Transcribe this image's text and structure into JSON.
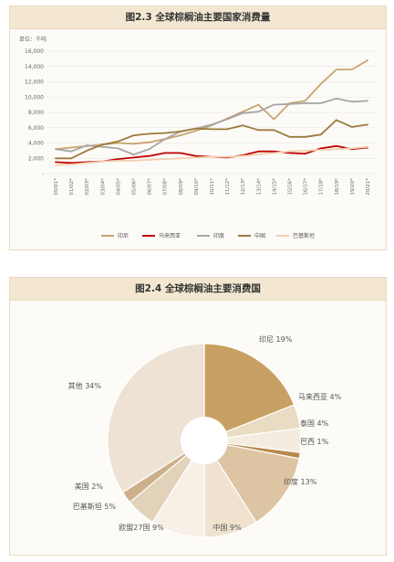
{
  "chart_data": [
    {
      "type": "line",
      "title": "图2.3 全球棕榈油主要国家消费量",
      "unit_label": "单位：千吨",
      "ylim": [
        0,
        16000
      ],
      "y_ticks": [
        "-",
        "2,000",
        "4,000",
        "6,000",
        "8,000",
        "10,000",
        "12,000",
        "14,000",
        "16,000"
      ],
      "categories": [
        "00/01*",
        "01/02*",
        "02/03*",
        "03/04*",
        "04/05*",
        "05/06*",
        "06/07*",
        "07/08*",
        "08/09*",
        "09/10*",
        "10/11*",
        "11/12*",
        "12/13*",
        "13/14*",
        "14/15*",
        "15/16*",
        "16/17*",
        "17/18*",
        "18/19*",
        "19/20*",
        "20/21*"
      ],
      "grid": true,
      "legend_position": "bottom",
      "series": [
        {
          "name": "印尼",
          "color": "#c8a46e",
          "values": [
            3200,
            3400,
            3600,
            3800,
            4000,
            3900,
            4100,
            4500,
            5000,
            5600,
            6300,
            7200,
            8100,
            9000,
            7100,
            9200,
            9500,
            11700,
            13600,
            13600,
            14800
          ]
        },
        {
          "name": "马来西亚",
          "color": "#c00000",
          "values": [
            1500,
            1400,
            1500,
            1600,
            1900,
            2100,
            2300,
            2700,
            2700,
            2300,
            2200,
            2100,
            2400,
            2900,
            2900,
            2700,
            2600,
            3300,
            3600,
            3200,
            3400
          ]
        },
        {
          "name": "印度",
          "color": "#a6a6a6",
          "values": [
            3200,
            2900,
            3700,
            3500,
            3300,
            2500,
            3200,
            4500,
            5500,
            5900,
            6400,
            7100,
            7900,
            8100,
            9000,
            9100,
            9200,
            9200,
            9800,
            9400,
            9500
          ]
        },
        {
          "name": "中国",
          "color": "#9c7a3c",
          "values": [
            2000,
            2000,
            3000,
            3800,
            4200,
            5000,
            5200,
            5300,
            5500,
            5900,
            5800,
            5800,
            6300,
            5700,
            5700,
            4800,
            4800,
            5100,
            7000,
            6100,
            6400
          ]
        },
        {
          "name": "巴基斯坦",
          "color": "#f2cfb0",
          "values": [
            1100,
            1200,
            1400,
            1600,
            1700,
            1700,
            1800,
            1900,
            2000,
            2100,
            2200,
            2200,
            2300,
            2500,
            2700,
            2900,
            3000,
            3100,
            3200,
            3300,
            3500
          ]
        }
      ]
    },
    {
      "type": "pie",
      "title": "图2.4 全球棕榈油主要消费国",
      "donut": true,
      "slices": [
        {
          "name": "印尼",
          "value": 19,
          "label": "印尼 19%",
          "color": "#c9a063"
        },
        {
          "name": "马来西亚",
          "value": 4,
          "label": "马来西亚 4%",
          "color": "#eadbc3"
        },
        {
          "name": "泰国",
          "value": 4,
          "label": "泰国 4%",
          "color": "#f4ece0"
        },
        {
          "name": "巴西",
          "value": 1,
          "label": "巴西 1%",
          "color": "#b9894b"
        },
        {
          "name": "印度",
          "value": 13,
          "label": "印度 13%",
          "color": "#ddc5a3"
        },
        {
          "name": "中国",
          "value": 9,
          "label": "中国 9%",
          "color": "#efe3d0"
        },
        {
          "name": "欧盟27国",
          "value": 9,
          "label": "欧盟27国 9%",
          "color": "#f7f0e6"
        },
        {
          "name": "巴基斯坦",
          "value": 5,
          "label": "巴基斯坦 5%",
          "color": "#e3d2ba"
        },
        {
          "name": "美国",
          "value": 2,
          "label": "美国 2%",
          "color": "#cdb08a"
        },
        {
          "name": "其他",
          "value": 34,
          "label": "其他 34%",
          "color": "#ede2d3"
        }
      ]
    }
  ]
}
